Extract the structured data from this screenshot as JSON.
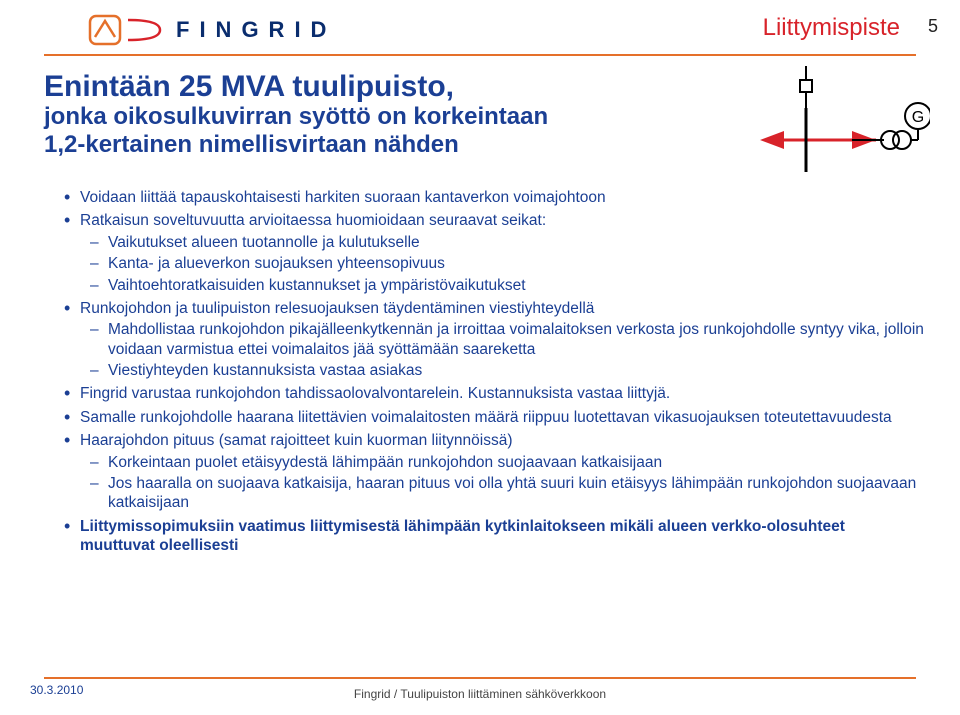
{
  "colors": {
    "accent_orange": "#e5702a",
    "accent_red": "#d8232a",
    "brand_blue": "#0a2d6e",
    "brand_text": "#0a2d6e",
    "title_blue": "#1b3f94",
    "body_blue": "#1b3f94",
    "page_num": "#222222",
    "diagram_line": "#000000"
  },
  "logo": {
    "letters": "FINGRID"
  },
  "header": {
    "label": "Liittymispiste",
    "page": "5"
  },
  "title": {
    "line1": "Enintään 25 MVA tuulipuisto,",
    "line2": "jonka oikosulkuvirran syöttö on korkeintaan",
    "line3": "1,2-kertainen nimellisvirtaan nähden"
  },
  "diagram": {
    "g_label": "G"
  },
  "bullets": [
    {
      "text": "Voidaan liittää tapauskohtaisesti harkiten suoraan kantaverkon voimajohtoon",
      "children": []
    },
    {
      "text": "Ratkaisun soveltuvuutta arvioitaessa huomioidaan seuraavat seikat:",
      "children": [
        {
          "text": "Vaikutukset alueen tuotannolle ja kulutukselle",
          "children": []
        },
        {
          "text": "Kanta- ja alueverkon suojauksen yhteensopivuus",
          "children": []
        },
        {
          "text": "Vaihtoehtoratkaisuiden kustannukset ja ympäristövaikutukset",
          "children": []
        }
      ]
    },
    {
      "text": "Runkojohdon ja tuulipuiston relesuojauksen täydentäminen viestiyhteydellä",
      "children": [
        {
          "text": "Mahdollistaa runkojohdon pikajälleenkytkennän ja irroittaa voimalaitoksen verkosta jos runkojohdolle syntyy vika, jolloin voidaan varmistua ettei voimalaitos jää syöttämään saareketta",
          "children": []
        },
        {
          "text": "Viestiyhteyden kustannuksista vastaa asiakas",
          "children": []
        }
      ]
    },
    {
      "text": "Fingrid varustaa runkojohdon tahdissaolovalvontarelein. Kustannuksista vastaa liittyjä.",
      "children": []
    },
    {
      "text": "Samalle runkojohdolle haarana liitettävien voimalaitosten määrä riippuu luotettavan vikasuojauksen toteutettavuudesta",
      "children": []
    },
    {
      "text": "Haarajohdon pituus (samat rajoitteet kuin kuorman liitynnöissä)",
      "children": [
        {
          "text": "Korkeintaan puolet etäisyydestä lähimpään runkojohdon suojaavaan katkaisijaan",
          "children": []
        },
        {
          "text": "Jos haaralla on suojaava katkaisija, haaran pituus voi olla yhtä suuri kuin etäisyys lähimpään runkojohdon suojaavaan katkaisijaan",
          "children": []
        }
      ]
    },
    {
      "text": "Liittymissopimuksiin vaatimus liittymisestä lähimpään kytkinlaitokseen mikäli alueen verkko-olosuhteet muuttuvat oleellisesti",
      "bold": true,
      "children": []
    }
  ],
  "footer": {
    "date": "30.3.2010",
    "center": "Fingrid / Tuulipuiston liittäminen sähköverkkoon"
  }
}
